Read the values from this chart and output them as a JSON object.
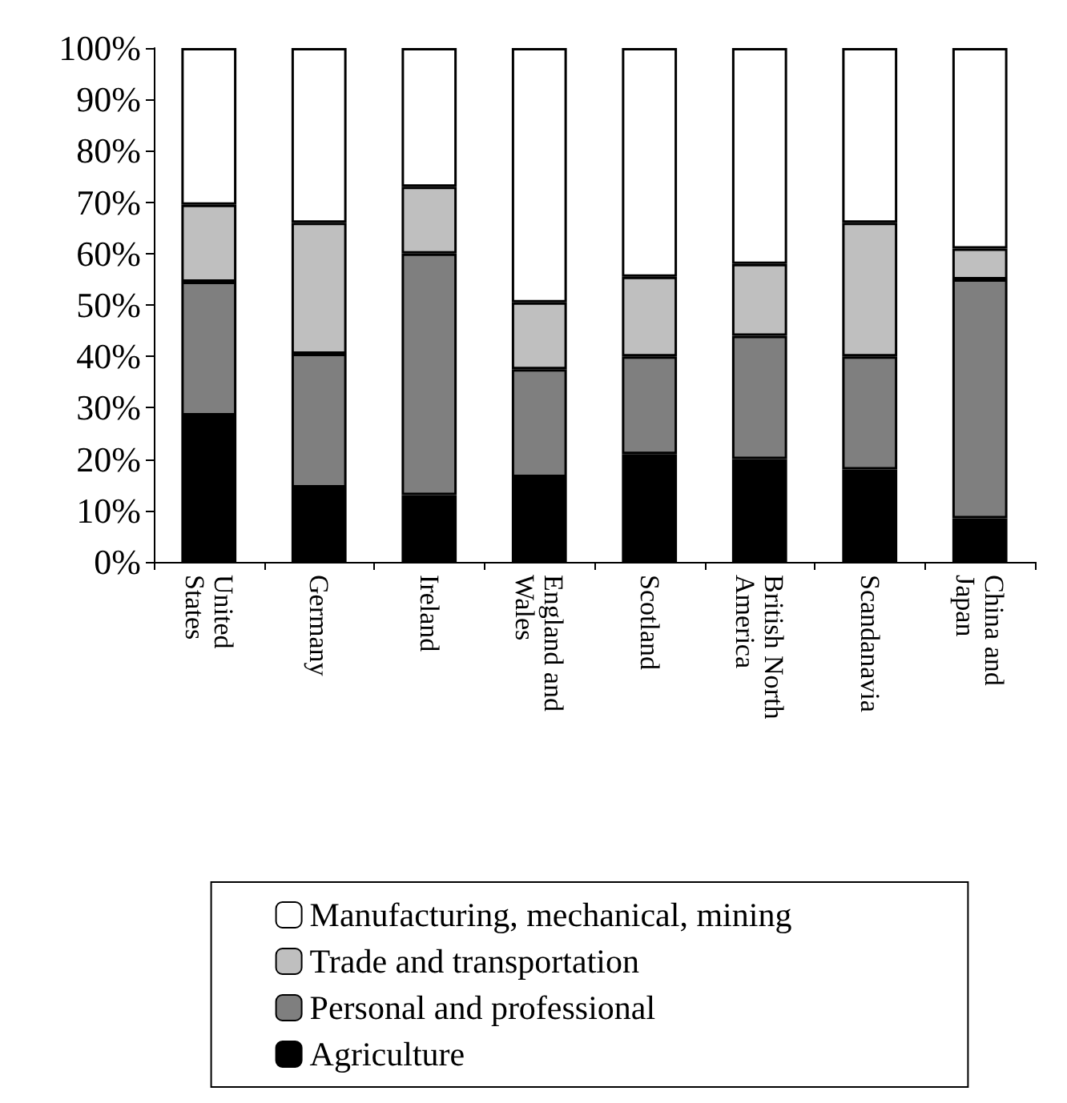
{
  "chart_data": {
    "type": "bar",
    "stacked": true,
    "categories": [
      "United States",
      "Germany",
      "Ireland",
      "England and Wales",
      "Scotland",
      "British North America",
      "Scandanavia",
      "China and Japan"
    ],
    "series": [
      {
        "name": "Agriculture",
        "color": "#000000",
        "values": [
          28.5,
          14.5,
          13,
          16.5,
          21,
          20,
          18,
          8.5
        ]
      },
      {
        "name": "Personal and professional",
        "color": "#7f7f7f",
        "values": [
          26,
          26,
          47,
          21,
          19,
          24,
          22,
          46.5
        ]
      },
      {
        "name": "Trade and transportation",
        "color": "#bfbfbf",
        "values": [
          15,
          25.5,
          13,
          13,
          15.5,
          14,
          26,
          6
        ]
      },
      {
        "name": "Manufacturing, mechanical, mining",
        "color": "#ffffff",
        "values": [
          30.5,
          34,
          27,
          49.5,
          44.5,
          42,
          34,
          39
        ]
      }
    ],
    "ylim": [
      0,
      100
    ],
    "yticks": [
      {
        "value": 0,
        "label": "0%"
      },
      {
        "value": 10,
        "label": "10%"
      },
      {
        "value": 20,
        "label": "20%"
      },
      {
        "value": 30,
        "label": "30%"
      },
      {
        "value": 40,
        "label": "40%"
      },
      {
        "value": 50,
        "label": "50%"
      },
      {
        "value": 60,
        "label": "60%"
      },
      {
        "value": 70,
        "label": "70%"
      },
      {
        "value": 80,
        "label": "80%"
      },
      {
        "value": 90,
        "label": "90%"
      },
      {
        "value": 100,
        "label": "100%"
      }
    ],
    "grid": false,
    "legend": "bottom"
  }
}
